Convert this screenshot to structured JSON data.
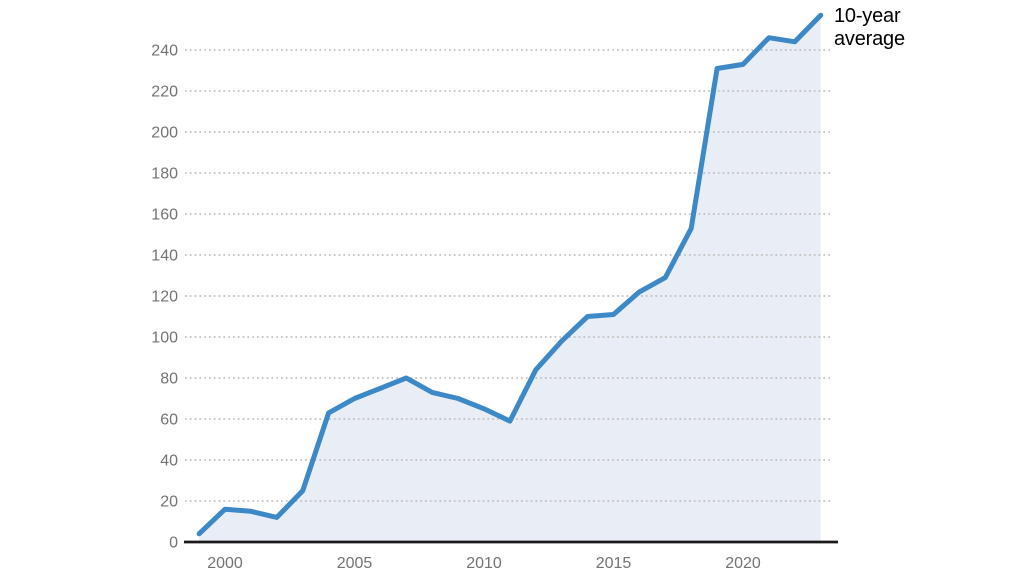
{
  "chart_data": {
    "type": "line",
    "title": "",
    "xlabel": "",
    "ylabel": "",
    "annotation": "10-year average",
    "series_name": "10-year average",
    "x": [
      1999,
      2000,
      2001,
      2002,
      2003,
      2004,
      2005,
      2006,
      2007,
      2008,
      2009,
      2010,
      2011,
      2012,
      2013,
      2014,
      2015,
      2016,
      2017,
      2018,
      2019,
      2020,
      2021,
      2022,
      2023
    ],
    "values": [
      4,
      16,
      15,
      12,
      25,
      63,
      70,
      75,
      80,
      73,
      70,
      65,
      59,
      84,
      98,
      110,
      111,
      122,
      129,
      153,
      231,
      233,
      246,
      244,
      257
    ],
    "xticks": [
      2000,
      2005,
      2010,
      2015,
      2020
    ],
    "yticks": [
      0,
      20,
      40,
      60,
      80,
      100,
      120,
      140,
      160,
      180,
      200,
      220,
      240
    ],
    "xlim": [
      1999,
      2023
    ],
    "ylim": [
      0,
      260
    ],
    "grid": "horizontal-dotted",
    "area_fill": true,
    "legend_position": "annotation-top-right",
    "colors": {
      "line": "#3d88c7",
      "area": "#e9eef6",
      "axis": "#1a1a1a",
      "grid": "#b5b5b5",
      "tick_label": "#737373",
      "annotation_text": "#000000",
      "background": "#ffffff"
    }
  }
}
